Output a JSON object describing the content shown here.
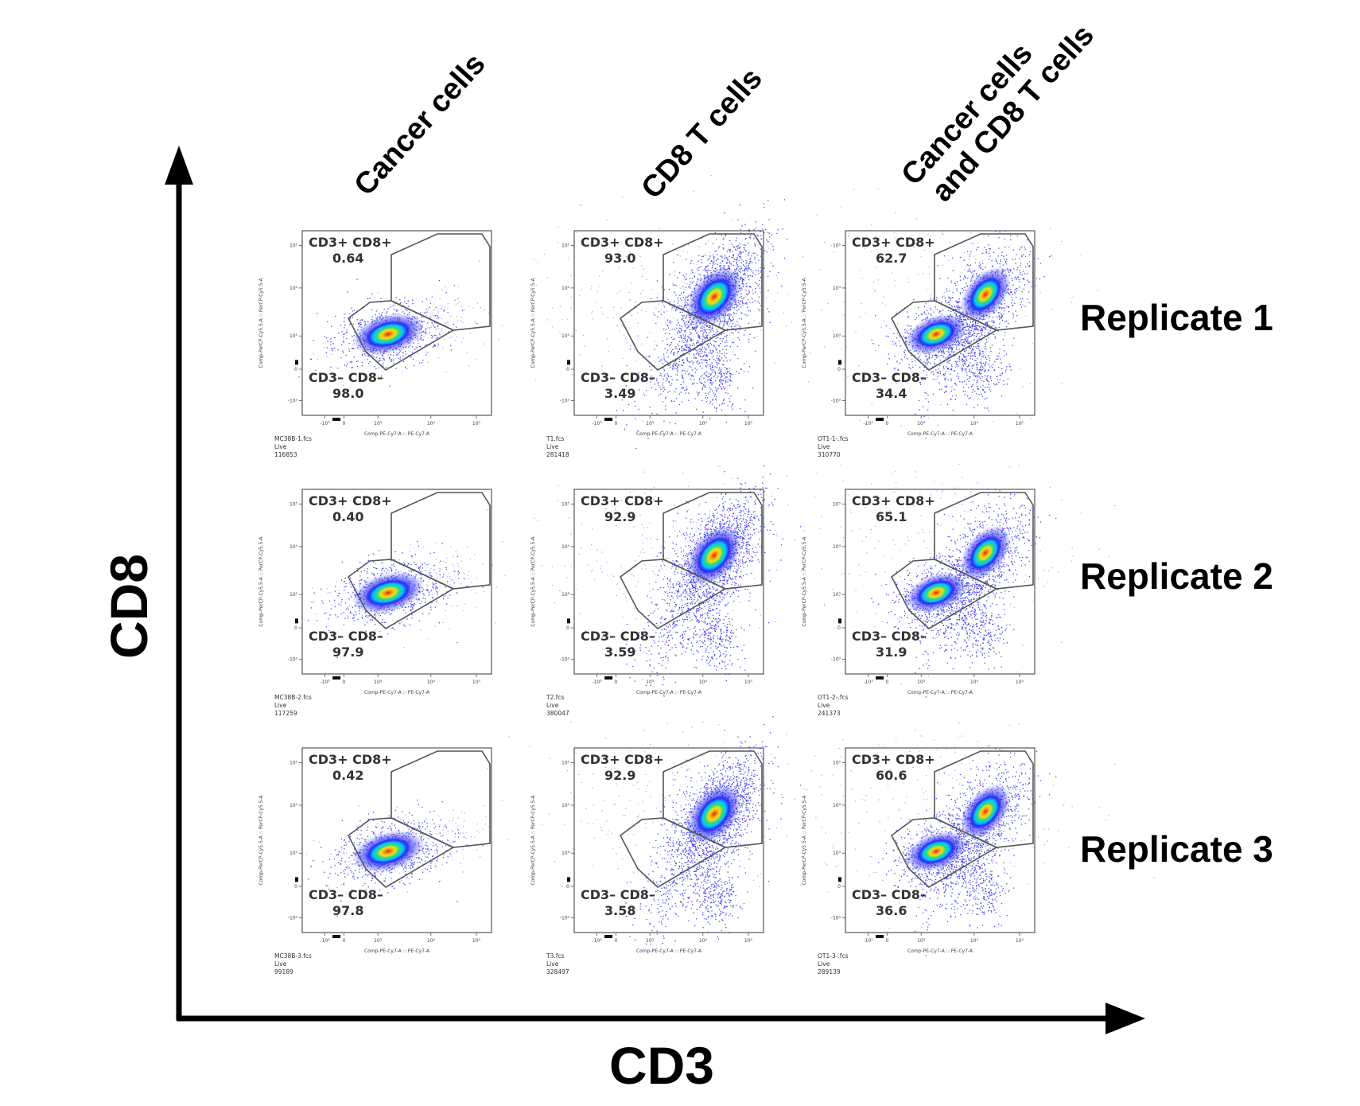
{
  "axes": {
    "x_title": "CD3",
    "y_title": "CD8"
  },
  "columns": [
    "Cancer cells",
    "CD8 T cells",
    "Cancer cells\nand CD8 T cells"
  ],
  "rows": [
    "Replicate 1",
    "Replicate 2",
    "Replicate 3"
  ],
  "plot_axis_labels": {
    "x": "Comp-PE-Cy7-A :: PE-Cy7-A",
    "y": "Comp-PerCP-Cy5.5-A :: PerCP-Cy5.5-A",
    "y_ticks": [
      "10⁵",
      "10⁴",
      "10³",
      "0",
      "-10³"
    ],
    "x_ticks": [
      "-10³",
      "0",
      "10³",
      "10⁴",
      "10⁵"
    ]
  },
  "gate_names": {
    "upper": "CD3+ CD8+",
    "lower": "CD3– CD8–"
  },
  "colors": {
    "density_low": "#2a2cf0",
    "density_mid1": "#00c8ff",
    "density_mid2": "#33d97a",
    "density_mid3": "#f0e11c",
    "density_high": "#e52010",
    "sparse": "#8a8cf5"
  },
  "chart_data": {
    "type": "scatter",
    "panels": [
      {
        "row": 0,
        "col": 0,
        "file": "MC38B-1.fcs",
        "gate": "Live",
        "count": "116853",
        "cd3pos_cd8pos": "0.64",
        "cd3neg_cd8neg": "98.0",
        "population": "cancer"
      },
      {
        "row": 0,
        "col": 1,
        "file": "T1.fcs",
        "gate": "Live",
        "count": "281418",
        "cd3pos_cd8pos": "93.0",
        "cd3neg_cd8neg": "3.49",
        "population": "tcell"
      },
      {
        "row": 0,
        "col": 2,
        "file": "OT1-1-.fcs",
        "gate": "Live",
        "count": "310770",
        "cd3pos_cd8pos": "62.7",
        "cd3neg_cd8neg": "34.4",
        "population": "mixed"
      },
      {
        "row": 1,
        "col": 0,
        "file": "MC38B-2.fcs",
        "gate": "Live",
        "count": "117259",
        "cd3pos_cd8pos": "0.40",
        "cd3neg_cd8neg": "97.9",
        "population": "cancer"
      },
      {
        "row": 1,
        "col": 1,
        "file": "T2.fcs",
        "gate": "Live",
        "count": "380047",
        "cd3pos_cd8pos": "92.9",
        "cd3neg_cd8neg": "3.59",
        "population": "tcell"
      },
      {
        "row": 1,
        "col": 2,
        "file": "OT1-2-.fcs",
        "gate": "Live",
        "count": "241373",
        "cd3pos_cd8pos": "65.1",
        "cd3neg_cd8neg": "31.9",
        "population": "mixed"
      },
      {
        "row": 2,
        "col": 0,
        "file": "MC38B-3.fcs",
        "gate": "Live",
        "count": "99189",
        "cd3pos_cd8pos": "0.42",
        "cd3neg_cd8neg": "97.8",
        "population": "cancer"
      },
      {
        "row": 2,
        "col": 1,
        "file": "T3.fcs",
        "gate": "Live",
        "count": "328497",
        "cd3pos_cd8pos": "92.9",
        "cd3neg_cd8neg": "3.58",
        "population": "tcell"
      },
      {
        "row": 2,
        "col": 2,
        "file": "OT1-3-.fcs",
        "gate": "Live",
        "count": "289139",
        "cd3pos_cd8pos": "60.6",
        "cd3neg_cd8neg": "36.6",
        "population": "mixed"
      }
    ]
  }
}
